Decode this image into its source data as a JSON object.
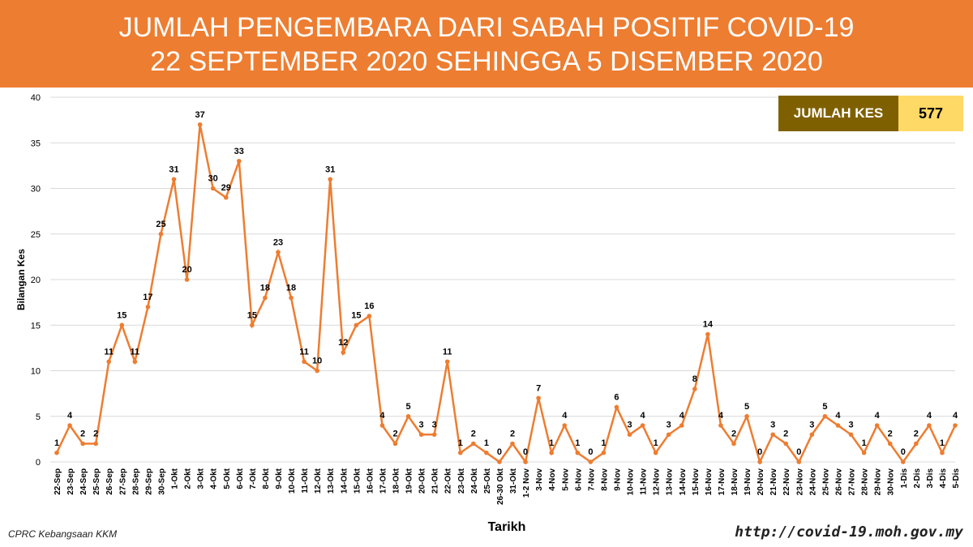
{
  "header": {
    "title_line1": "JUMLAH PENGEMBARA DARI SABAH POSITIF COVID-19",
    "title_line2": "22 SEPTEMBER 2020 SEHINGGA 5 DISEMBER 2020",
    "background": "#ed7d31"
  },
  "total": {
    "label": "JUMLAH KES",
    "value": "577"
  },
  "footer": {
    "source": "CPRC Kebangsaan KKM",
    "url": "http://covid-19.moh.gov.my"
  },
  "chart_data": {
    "type": "line",
    "xlabel": "Tarikh",
    "ylabel": "Bilangan Kes",
    "ylim": [
      0,
      40
    ],
    "yticks": [
      0,
      5,
      10,
      15,
      20,
      25,
      30,
      35,
      40
    ],
    "grid": true,
    "line_color": "#ed7d31",
    "categories": [
      "22-Sep",
      "23-Sep",
      "24-Sep",
      "25-Sep",
      "26-Sep",
      "27-Sep",
      "28-Sep",
      "29-Sep",
      "30-Sep",
      "1-Okt",
      "2-Okt",
      "3-Okt",
      "4-Okt",
      "5-Okt",
      "6-Okt",
      "7-Okt",
      "8-Okt",
      "9-Okt",
      "10-Okt",
      "11-Okt",
      "12-Okt",
      "13-Okt",
      "14-Okt",
      "15-Okt",
      "16-Okt",
      "17-Okt",
      "18-Okt",
      "19-Okt",
      "20-Okt",
      "21-Okt",
      "22-Okt",
      "23-Okt",
      "24-Okt",
      "25-Okt",
      "26-30 Okt",
      "31-Okt",
      "1-2 Nov",
      "3-Nov",
      "4-Nov",
      "5-Nov",
      "6-Nov",
      "7-Nov",
      "8-Nov",
      "9-Nov",
      "10-Nov",
      "11-Nov",
      "12-Nov",
      "13-Nov",
      "14-Nov",
      "15-Nov",
      "16-Nov",
      "17-Nov",
      "18-Nov",
      "19-Nov",
      "20-Nov",
      "21-Nov",
      "22-Nov",
      "23-Nov",
      "24-Nov",
      "25-Nov",
      "26-Nov",
      "27-Nov",
      "28-Nov",
      "29-Nov",
      "30-Nov",
      "1-Dis",
      "2-Dis",
      "3-Dis",
      "4-Dis",
      "5-Dis"
    ],
    "values": [
      1,
      4,
      2,
      2,
      11,
      15,
      11,
      17,
      25,
      31,
      20,
      37,
      30,
      29,
      33,
      15,
      18,
      23,
      18,
      11,
      10,
      31,
      12,
      15,
      16,
      4,
      2,
      5,
      3,
      3,
      11,
      1,
      2,
      1,
      0,
      2,
      0,
      7,
      1,
      4,
      1,
      0,
      1,
      6,
      3,
      4,
      1,
      3,
      4,
      8,
      14,
      4,
      2,
      5,
      0,
      3,
      2,
      0,
      3,
      5,
      4,
      3,
      1,
      4,
      2,
      0,
      2,
      4,
      1,
      4
    ]
  }
}
